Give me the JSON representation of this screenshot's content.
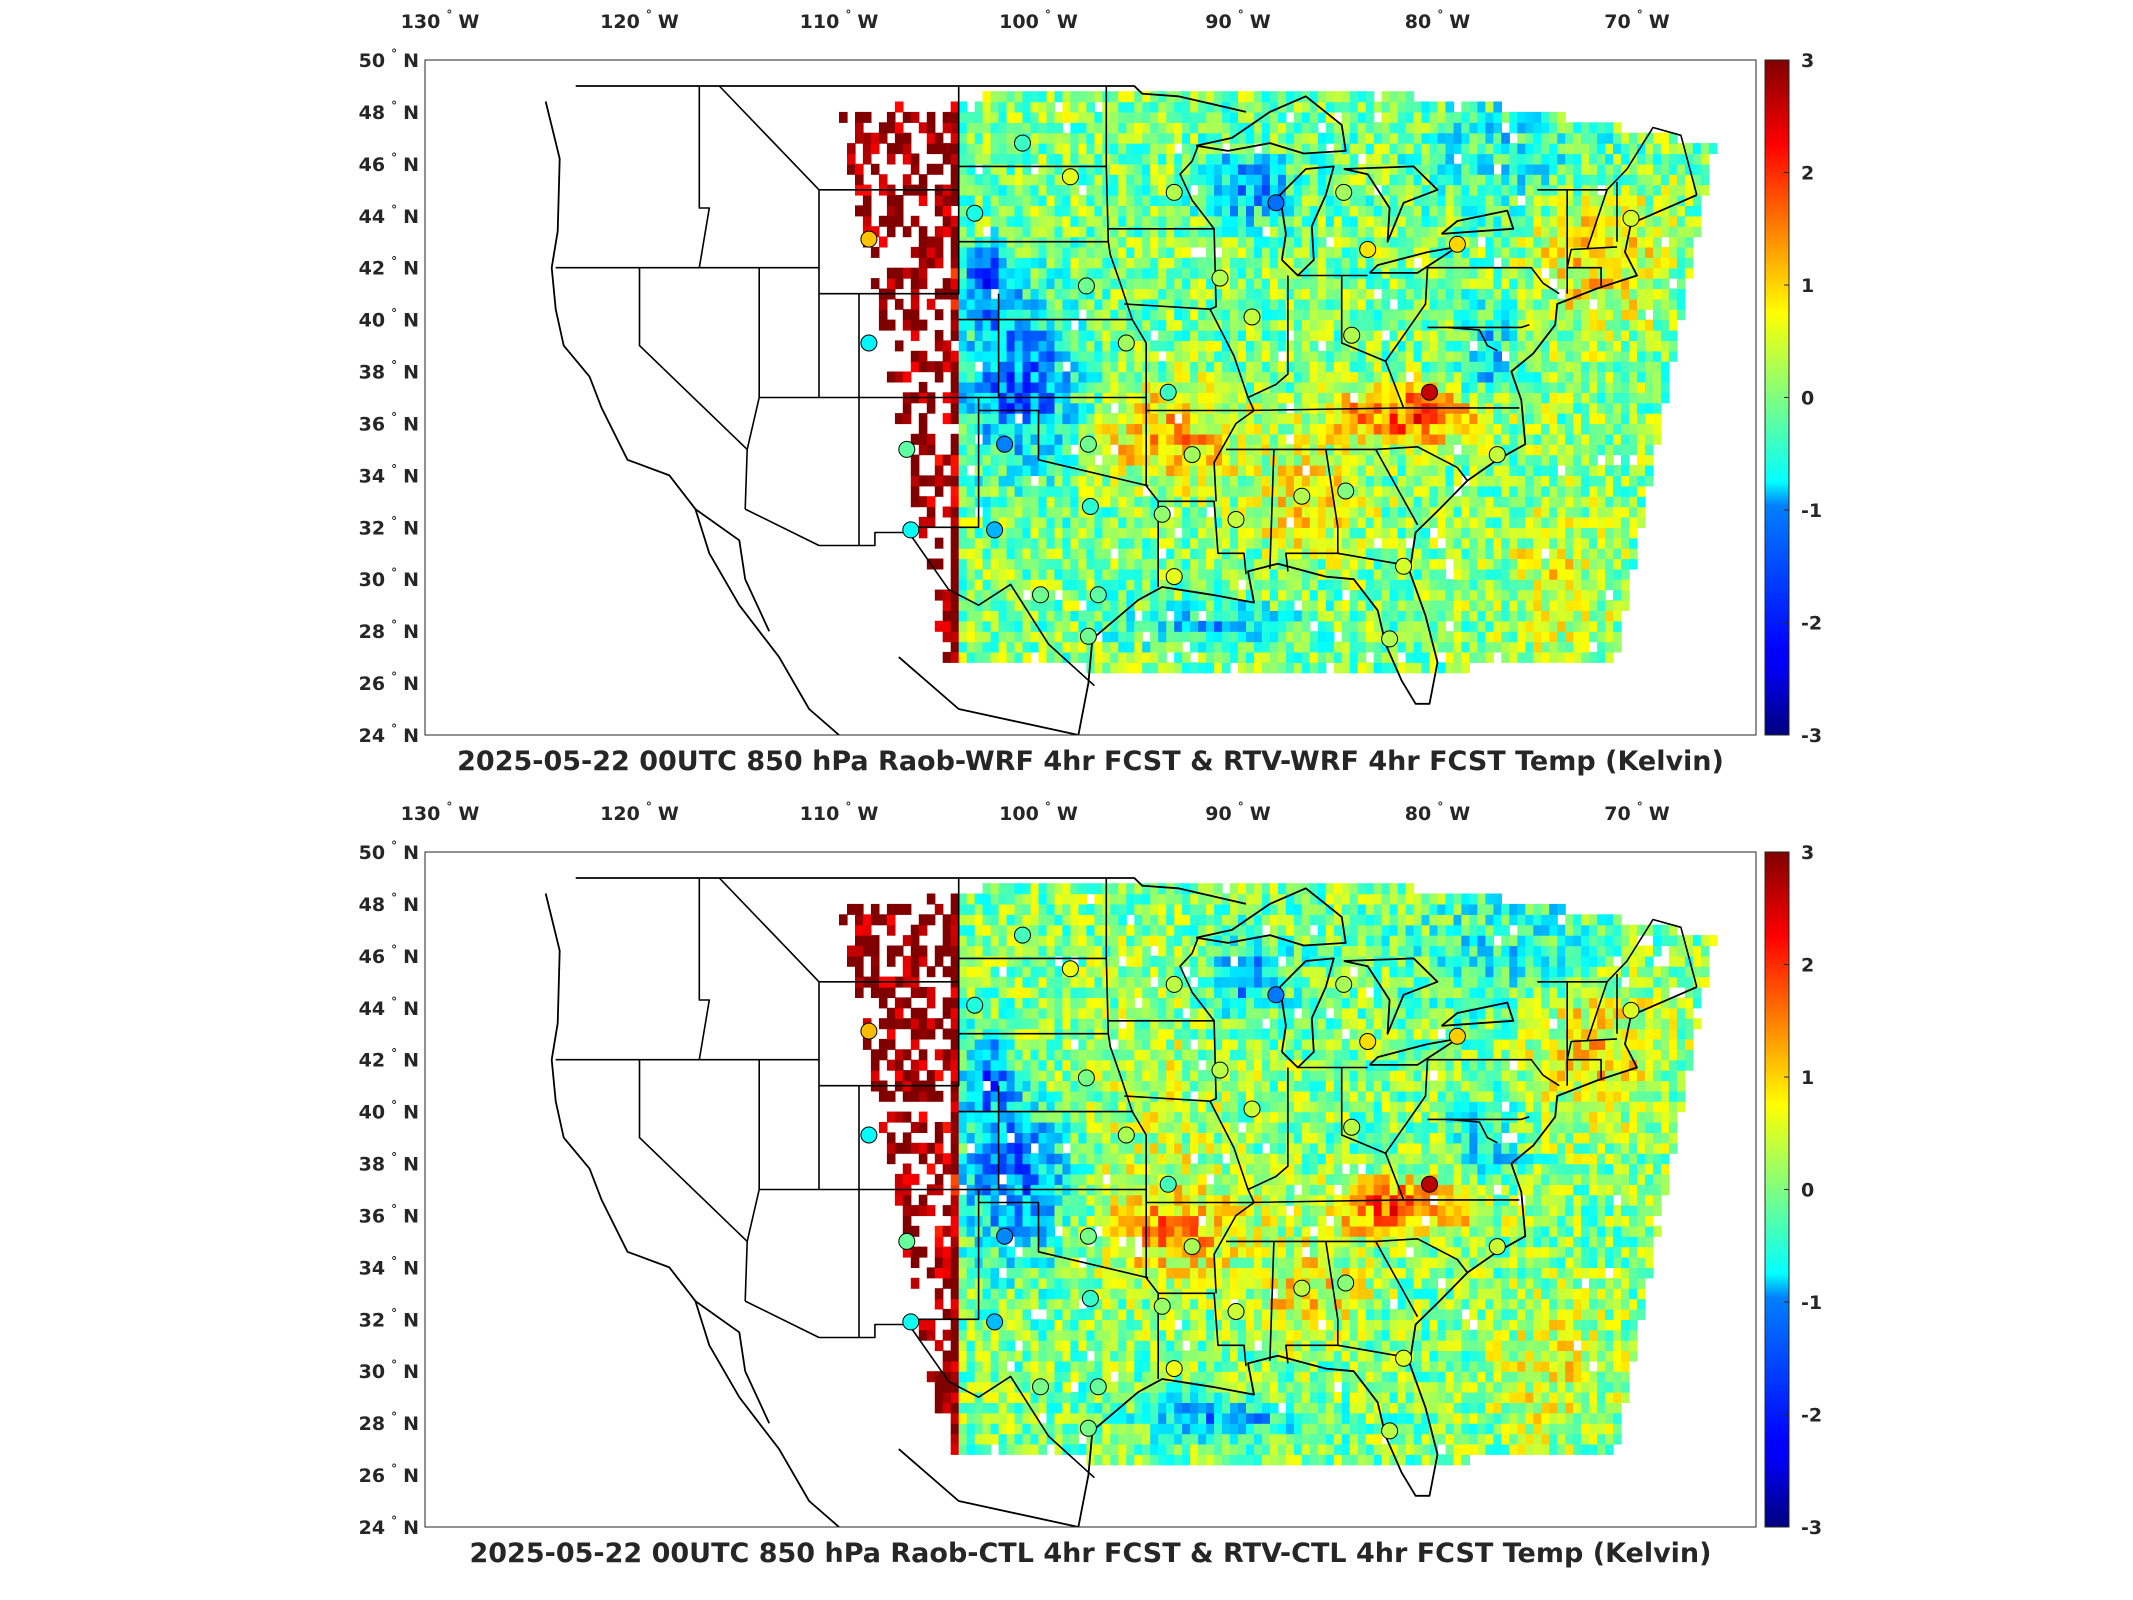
{
  "figure": {
    "panels": [
      {
        "title": "2025-05-22 00UTC 850 hPa Raob-WRF 4hr FCST & RTV-WRF 4hr FCST Temp (Kelvin)",
        "variant": 0
      },
      {
        "title": "2025-05-22 00UTC 850 hPa Raob-CTL 4hr FCST & RTV-CTL 4hr FCST Temp (Kelvin)",
        "variant": 1
      }
    ],
    "lon_ticks": [
      {
        "value": -130,
        "num": "130",
        "dir": "W"
      },
      {
        "value": -120,
        "num": "120",
        "dir": "W"
      },
      {
        "value": -110,
        "num": "110",
        "dir": "W"
      },
      {
        "value": -100,
        "num": "100",
        "dir": "W"
      },
      {
        "value": -90,
        "num": "90",
        "dir": "W"
      },
      {
        "value": -80,
        "num": "80",
        "dir": "W"
      },
      {
        "value": -70,
        "num": "70",
        "dir": "W"
      }
    ],
    "lat_ticks": [
      {
        "value": 50,
        "num": "50",
        "dir": "N"
      },
      {
        "value": 48,
        "num": "48",
        "dir": "N"
      },
      {
        "value": 46,
        "num": "46",
        "dir": "N"
      },
      {
        "value": 44,
        "num": "44",
        "dir": "N"
      },
      {
        "value": 42,
        "num": "42",
        "dir": "N"
      },
      {
        "value": 40,
        "num": "40",
        "dir": "N"
      },
      {
        "value": 38,
        "num": "38",
        "dir": "N"
      },
      {
        "value": 36,
        "num": "36",
        "dir": "N"
      },
      {
        "value": 34,
        "num": "34",
        "dir": "N"
      },
      {
        "value": 32,
        "num": "32",
        "dir": "N"
      },
      {
        "value": 30,
        "num": "30",
        "dir": "N"
      },
      {
        "value": 28,
        "num": "28",
        "dir": "N"
      },
      {
        "value": 26,
        "num": "26",
        "dir": "N"
      },
      {
        "value": 24,
        "num": "24",
        "dir": "N"
      }
    ],
    "degree_symbol": "°",
    "colorbar": {
      "min": -3,
      "max": 3,
      "ticks": [
        {
          "value": 3,
          "label": "3"
        },
        {
          "value": 2,
          "label": "2"
        },
        {
          "value": 1,
          "label": "1"
        },
        {
          "value": 0,
          "label": "0"
        },
        {
          "value": -1,
          "label": "-1"
        },
        {
          "value": -2,
          "label": "-2"
        },
        {
          "value": -3,
          "label": "-3"
        }
      ],
      "colormap": "jet"
    },
    "stations": [
      {
        "lon": -108.5,
        "lat": 43.1,
        "v": 1.1
      },
      {
        "lon": -108.5,
        "lat": 39.1,
        "v": -0.8
      },
      {
        "lon": -106.6,
        "lat": 35.0,
        "v": -0.2
      },
      {
        "lon": -106.4,
        "lat": 31.9,
        "v": -0.7
      },
      {
        "lon": -101.7,
        "lat": 35.2,
        "v": -1.5
      },
      {
        "lon": -102.2,
        "lat": 31.9,
        "v": -1.2
      },
      {
        "lon": -103.2,
        "lat": 44.1,
        "v": -0.6
      },
      {
        "lon": -100.8,
        "lat": 46.8,
        "v": -0.4
      },
      {
        "lon": -98.4,
        "lat": 45.5,
        "v": 0.6
      },
      {
        "lon": -97.6,
        "lat": 41.3,
        "v": -0.1
      },
      {
        "lon": -95.6,
        "lat": 39.1,
        "v": 0.2
      },
      {
        "lon": -97.5,
        "lat": 35.2,
        "v": -0.1
      },
      {
        "lon": -97.4,
        "lat": 32.8,
        "v": -0.5
      },
      {
        "lon": -97.0,
        "lat": 29.4,
        "v": -0.2
      },
      {
        "lon": -97.5,
        "lat": 27.8,
        "v": -0.1
      },
      {
        "lon": -99.9,
        "lat": 29.4,
        "v": -0.1
      },
      {
        "lon": -93.2,
        "lat": 44.9,
        "v": 0.3
      },
      {
        "lon": -93.5,
        "lat": 37.2,
        "v": -0.4
      },
      {
        "lon": -92.3,
        "lat": 34.8,
        "v": 0.2
      },
      {
        "lon": -93.8,
        "lat": 32.5,
        "v": 0.1
      },
      {
        "lon": -93.2,
        "lat": 30.1,
        "v": 0.6
      },
      {
        "lon": -90.1,
        "lat": 32.3,
        "v": 0.4
      },
      {
        "lon": -90.9,
        "lat": 41.6,
        "v": 0.3
      },
      {
        "lon": -89.3,
        "lat": 40.1,
        "v": 0.4
      },
      {
        "lon": -88.1,
        "lat": 44.5,
        "v": -1.6
      },
      {
        "lon": -86.8,
        "lat": 33.2,
        "v": 0.3
      },
      {
        "lon": -84.6,
        "lat": 33.4,
        "v": 0.0
      },
      {
        "lon": -84.7,
        "lat": 44.9,
        "v": 0.2
      },
      {
        "lon": -83.5,
        "lat": 42.7,
        "v": 0.9
      },
      {
        "lon": -84.3,
        "lat": 39.4,
        "v": 0.3
      },
      {
        "lon": -80.4,
        "lat": 37.2,
        "v": 2.6
      },
      {
        "lon": -79.0,
        "lat": 42.9,
        "v": 1.0
      },
      {
        "lon": -77.0,
        "lat": 34.8,
        "v": 0.4
      },
      {
        "lon": -81.7,
        "lat": 30.5,
        "v": 0.5
      },
      {
        "lon": -82.4,
        "lat": 27.7,
        "v": 0.3
      },
      {
        "lon": -70.3,
        "lat": 43.9,
        "v": 0.5
      }
    ]
  }
}
